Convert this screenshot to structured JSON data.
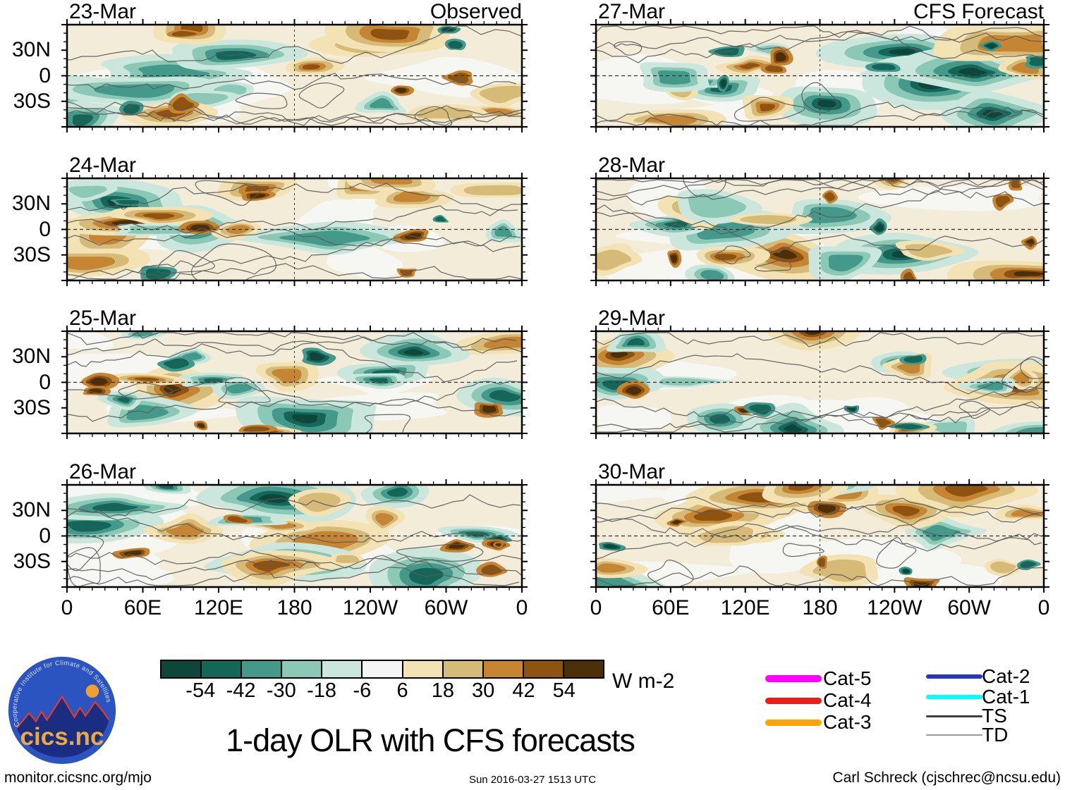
{
  "figure": {
    "title": "1-day OLR with CFS forecasts"
  },
  "columns": [
    {
      "header": "Observed"
    },
    {
      "header": "CFS Forecast"
    }
  ],
  "panels": [
    {
      "date": "23-Mar",
      "column": "Observed",
      "header": "Observed"
    },
    {
      "date": "24-Mar",
      "column": "Observed"
    },
    {
      "date": "25-Mar",
      "column": "Observed"
    },
    {
      "date": "26-Mar",
      "column": "Observed"
    },
    {
      "date": "27-Mar",
      "column": "CFS Forecast",
      "header": "CFS Forecast"
    },
    {
      "date": "28-Mar",
      "column": "CFS Forecast"
    },
    {
      "date": "29-Mar",
      "column": "CFS Forecast"
    },
    {
      "date": "30-Mar",
      "column": "CFS Forecast"
    }
  ],
  "axes": {
    "x_tick_labels": [
      "0",
      "60E",
      "120E",
      "180",
      "120W",
      "60W",
      "0"
    ],
    "y_tick_labels": [
      "30N",
      "0",
      "30S"
    ]
  },
  "colorbar": {
    "tick_values": [
      -54,
      -42,
      -30,
      -18,
      -6,
      6,
      18,
      30,
      42,
      54
    ],
    "units_label": "W m-2",
    "colors": [
      "#0e463c",
      "#156659",
      "#45998b",
      "#8bc8b6",
      "#cbe7dd",
      "#f4f5f4",
      "#f2e2b4",
      "#d6ba77",
      "#c68533",
      "#8f5311",
      "#4c2e08"
    ]
  },
  "legend": {
    "column_a": [
      {
        "label": "Cat-5",
        "color": "#ff00ff",
        "thickness": 10
      },
      {
        "label": "Cat-4",
        "color": "#ed1c16",
        "thickness": 9
      },
      {
        "label": "Cat-3",
        "color": "#ffa308",
        "thickness": 9
      }
    ],
    "column_b": [
      {
        "label": "Cat-2",
        "color": "#2236cc",
        "thickness": 6
      },
      {
        "label": "Cat-1",
        "color": "#00ffff",
        "thickness": 6
      },
      {
        "label": "TS",
        "color": "#3d3d3d",
        "thickness": 3
      },
      {
        "label": "TD",
        "color": "#9b9b9b",
        "thickness": 2
      }
    ]
  },
  "logo": {
    "arc_text": "Cooperative Institute for Climate and Satellites",
    "name": "cics.nc",
    "circle_color": "#2b54c0",
    "mountain_color": "#1b2d80",
    "ridge_color": "#e23a2b",
    "name_color": "#eca93f",
    "sun_color": "#f0a030"
  },
  "footer": {
    "left": "monitor.cicsnc.org/mjo",
    "center": "Sun 2016-03-27 1513 UTC",
    "right": "Carl Schreck (cjschrec@ncsu.edu)"
  },
  "chart_data": {
    "type": "heatmap",
    "title": "1-day OLR with CFS forecasts",
    "description": "Eight filled-contour world-map panels of 1-day OLR anomalies; left column observed (23-26 Mar), right column CFS forecast (27-30 Mar)",
    "columns": [
      "Observed",
      "CFS Forecast"
    ],
    "panels": [
      {
        "date": "23-Mar",
        "kind": "Observed"
      },
      {
        "date": "24-Mar",
        "kind": "Observed"
      },
      {
        "date": "25-Mar",
        "kind": "Observed"
      },
      {
        "date": "26-Mar",
        "kind": "Observed"
      },
      {
        "date": "27-Mar",
        "kind": "CFS Forecast"
      },
      {
        "date": "28-Mar",
        "kind": "CFS Forecast"
      },
      {
        "date": "29-Mar",
        "kind": "CFS Forecast"
      },
      {
        "date": "30-Mar",
        "kind": "CFS Forecast"
      }
    ],
    "x_axis": {
      "tick_labels": [
        "0",
        "60E",
        "120E",
        "180",
        "120W",
        "60W",
        "0"
      ],
      "range_deg_lon": [
        0,
        360
      ]
    },
    "y_axis": {
      "tick_labels": [
        "30N",
        "0",
        "30S"
      ]
    },
    "colorbar": {
      "units": "W m-2",
      "boundaries": [
        -54,
        -42,
        -30,
        -18,
        -6,
        6,
        18,
        30,
        42,
        54
      ],
      "palette": [
        "#0e463c",
        "#156659",
        "#45998b",
        "#8bc8b6",
        "#cbe7dd",
        "#f4f5f4",
        "#f2e2b4",
        "#d6ba77",
        "#c68533",
        "#8f5311",
        "#4c2e08"
      ]
    },
    "legend": [
      {
        "label": "Cat-5",
        "color": "#ff00ff"
      },
      {
        "label": "Cat-4",
        "color": "#ed1c16"
      },
      {
        "label": "Cat-3",
        "color": "#ffa308"
      },
      {
        "label": "Cat-2",
        "color": "#2236cc"
      },
      {
        "label": "Cat-1",
        "color": "#00ffff"
      },
      {
        "label": "TS",
        "color": "#3d3d3d"
      },
      {
        "label": "TD",
        "color": "#9b9b9b"
      }
    ],
    "legend_position": "bottom-right",
    "grid": "dashed equator and dateline reference lines"
  }
}
